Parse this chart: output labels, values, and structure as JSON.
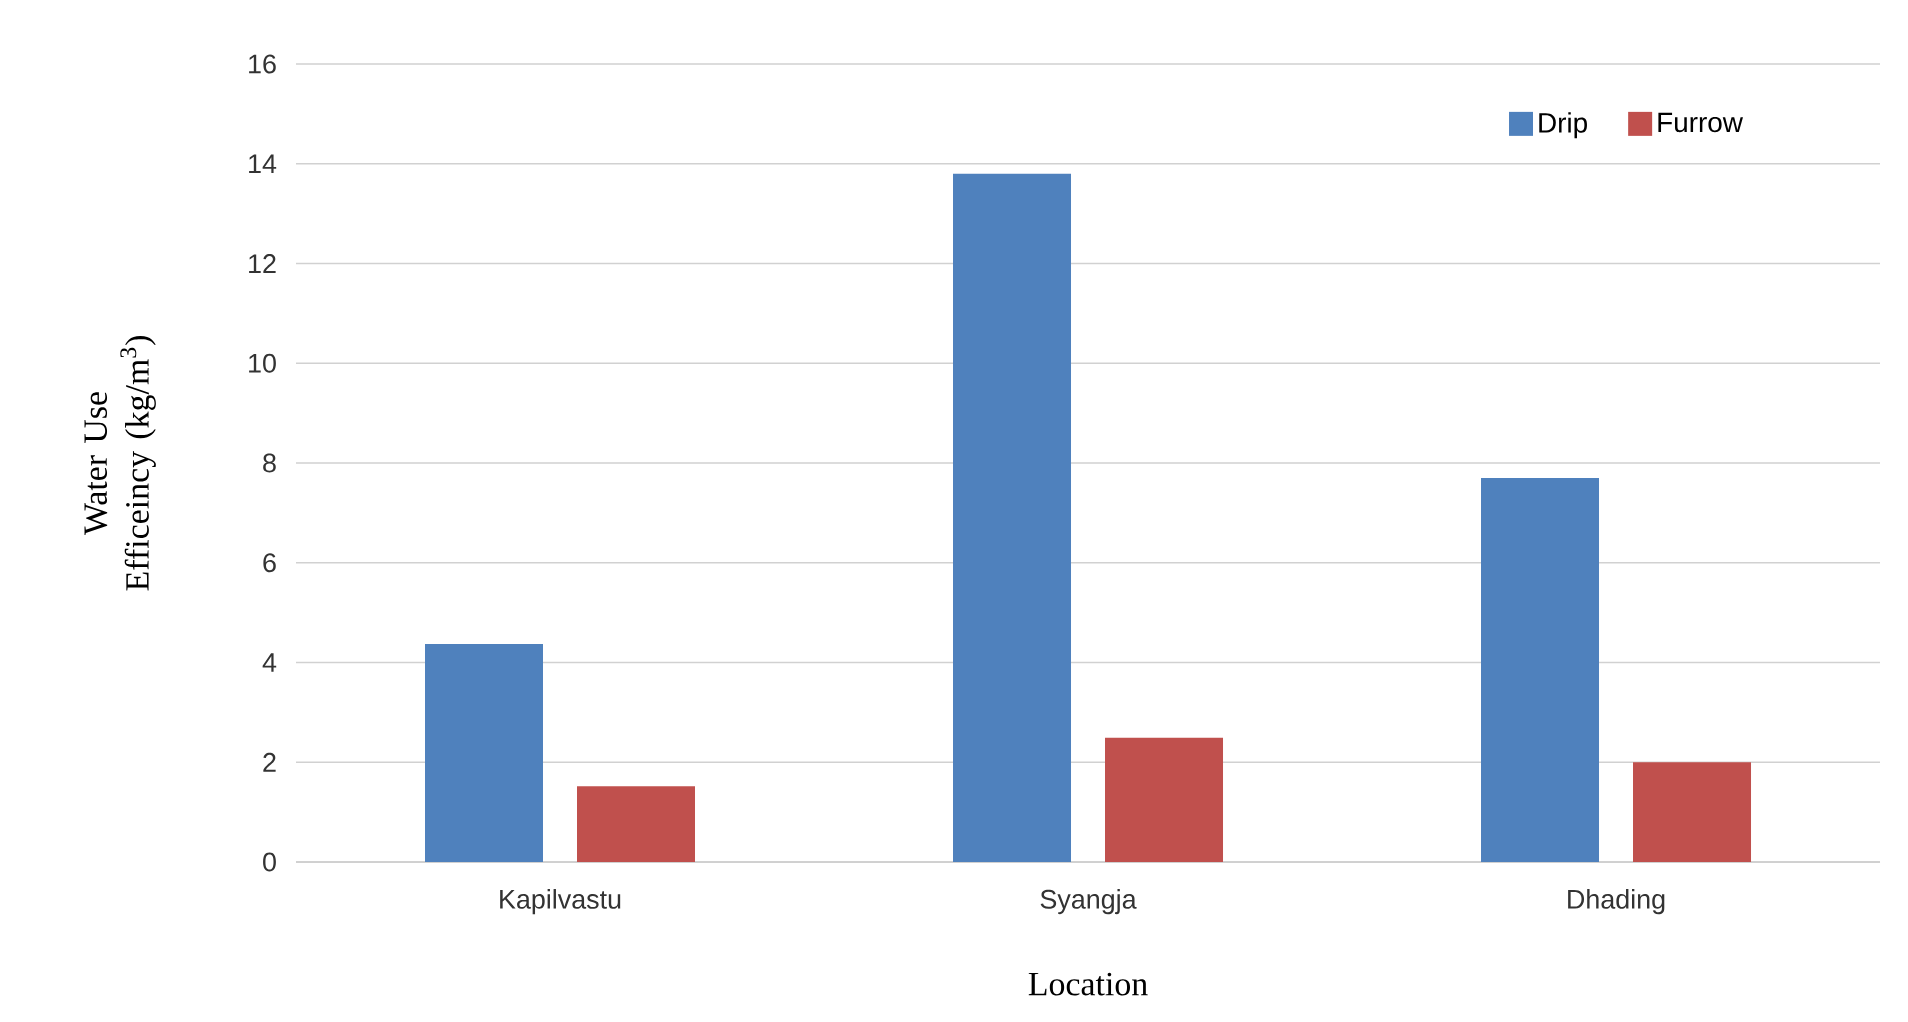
{
  "chart_data": {
    "type": "bar",
    "xlabel": "Location",
    "ylabel": "Water Use Efficeincy (kg/m$^{3}$)",
    "categories": [
      "Kapilvastu",
      "Syangja",
      "Dhading"
    ],
    "series": [
      {
        "name": "Drip",
        "color": "#4f81bd",
        "values": [
          4.37,
          13.8,
          7.7
        ]
      },
      {
        "name": "Furrow",
        "color": "#c0504d",
        "values": [
          1.52,
          2.49,
          2.0
        ]
      }
    ],
    "ylim": [
      0,
      16
    ],
    "yticks": [
      0,
      2,
      4,
      6,
      8,
      10,
      12,
      14,
      16
    ],
    "grid": "y",
    "legend": "top right"
  }
}
